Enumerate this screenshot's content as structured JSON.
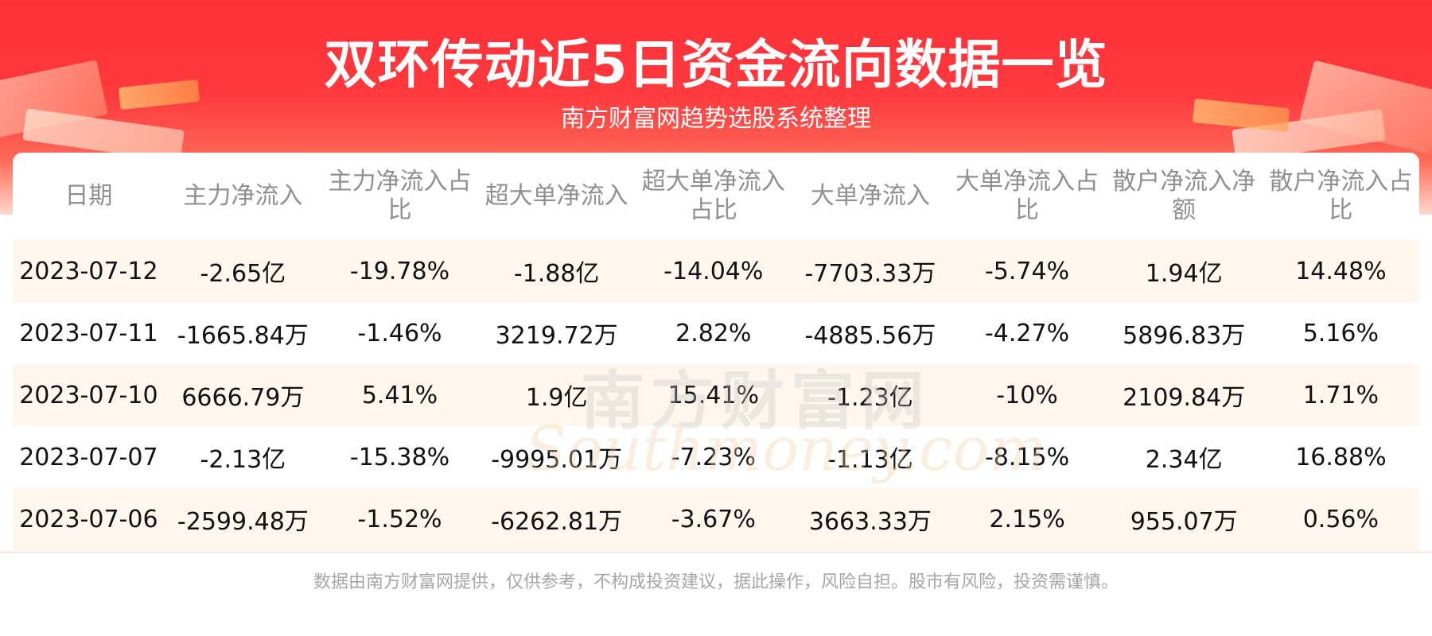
{
  "header": {
    "title": "双环传动近5日资金流向数据一览",
    "subtitle": "南方财富网趋势选股系统整理"
  },
  "watermark": {
    "cn": "南方财富网",
    "en": "Southmoney.com"
  },
  "table": {
    "headers": [
      "日期",
      "主力净流入",
      "主力净流入占比",
      "超大单净流入",
      "超大单净流入占比",
      "大单净流入",
      "大单净流入占比",
      "散户净流入净额",
      "散户净流入占比"
    ],
    "rows": [
      [
        "2023-07-12",
        "-2.65亿",
        "-19.78%",
        "-1.88亿",
        "-14.04%",
        "-7703.33万",
        "-5.74%",
        "1.94亿",
        "14.48%"
      ],
      [
        "2023-07-11",
        "-1665.84万",
        "-1.46%",
        "3219.72万",
        "2.82%",
        "-4885.56万",
        "-4.27%",
        "5896.83万",
        "5.16%"
      ],
      [
        "2023-07-10",
        "6666.79万",
        "5.41%",
        "1.9亿",
        "15.41%",
        "-1.23亿",
        "-10%",
        "2109.84万",
        "1.71%"
      ],
      [
        "2023-07-07",
        "-2.13亿",
        "-15.38%",
        "-9995.01万",
        "-7.23%",
        "-1.13亿",
        "-8.15%",
        "2.34亿",
        "16.88%"
      ],
      [
        "2023-07-06",
        "-2599.48万",
        "-1.52%",
        "-6262.81万",
        "-3.67%",
        "3663.33万",
        "2.15%",
        "955.07万",
        "0.56%"
      ]
    ]
  },
  "footer": {
    "text": "数据由南方财富网提供，仅供参考，不构成投资建议，据此操作，风险自担。股市有风险，投资需谨慎。"
  },
  "colors": {
    "banner_red": "#ff2f38",
    "row_stripe": "#fff6ee",
    "header_text": "#8f8f8f"
  }
}
